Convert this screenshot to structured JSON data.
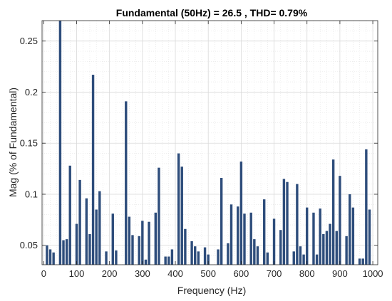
{
  "chart_data": {
    "type": "bar",
    "title": "Fundamental (50Hz) = 26.5 , THD= 0.79%",
    "xlabel": "Frequency (Hz)",
    "ylabel": "Mag (% of Fundamental)",
    "xlim": [
      -5,
      1015
    ],
    "ylim": [
      0.031,
      0.27
    ],
    "xticks": [
      0,
      100,
      200,
      300,
      400,
      500,
      600,
      700,
      800,
      900,
      1000
    ],
    "yticks": [
      0.05,
      0.1,
      0.15,
      0.2,
      0.25
    ],
    "ytick_labels": [
      "0.05",
      "0.1",
      "0.15",
      "0.2",
      "0.25"
    ],
    "grid": true,
    "bar_color": "#2e4d7b",
    "x": [
      10,
      20,
      30,
      50,
      60,
      70,
      80,
      100,
      110,
      130,
      140,
      150,
      160,
      170,
      190,
      210,
      220,
      250,
      260,
      270,
      290,
      300,
      310,
      320,
      340,
      350,
      370,
      380,
      390,
      410,
      420,
      430,
      450,
      460,
      470,
      490,
      500,
      530,
      540,
      560,
      570,
      590,
      600,
      610,
      630,
      640,
      650,
      670,
      680,
      700,
      720,
      730,
      740,
      760,
      770,
      780,
      790,
      800,
      820,
      830,
      840,
      850,
      860,
      870,
      880,
      890,
      900,
      920,
      930,
      940,
      960,
      970,
      980,
      990
    ],
    "values": [
      0.05,
      0.046,
      0.043,
      0.27,
      0.055,
      0.056,
      0.128,
      0.071,
      0.114,
      0.096,
      0.061,
      0.217,
      0.085,
      0.103,
      0.044,
      0.081,
      0.045,
      0.191,
      0.078,
      0.06,
      0.059,
      0.074,
      0.036,
      0.073,
      0.082,
      0.126,
      0.039,
      0.039,
      0.046,
      0.14,
      0.127,
      0.066,
      0.054,
      0.049,
      0.044,
      0.048,
      0.041,
      0.046,
      0.116,
      0.052,
      0.09,
      0.088,
      0.132,
      0.081,
      0.082,
      0.056,
      0.049,
      0.095,
      0.043,
      0.076,
      0.065,
      0.115,
      0.112,
      0.044,
      0.11,
      0.049,
      0.041,
      0.087,
      0.082,
      0.041,
      0.086,
      0.061,
      0.064,
      0.071,
      0.134,
      0.064,
      0.118,
      0.059,
      0.1,
      0.087,
      0.037,
      0.037,
      0.144,
      0.085
    ]
  }
}
